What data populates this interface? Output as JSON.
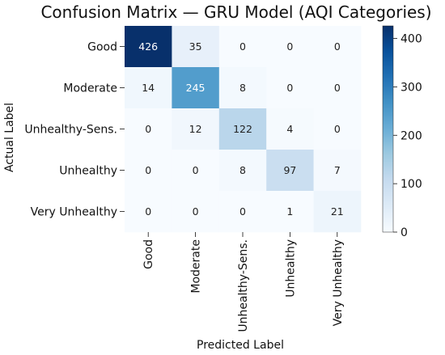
{
  "chart_data": {
    "type": "heatmap",
    "title": "Confusion Matrix — GRU Model (AQI Categories)",
    "xlabel": "Predicted Label",
    "ylabel": "Actual Label",
    "row_labels": [
      "Good",
      "Moderate",
      "Unhealthy-Sens.",
      "Unhealthy",
      "Very Unhealthy"
    ],
    "col_labels": [
      "Good",
      "Moderate",
      "Unhealthy-Sens.",
      "Unhealthy",
      "Very Unhealthy"
    ],
    "values": [
      [
        426,
        35,
        0,
        0,
        0
      ],
      [
        14,
        245,
        8,
        0,
        0
      ],
      [
        0,
        12,
        122,
        4,
        0
      ],
      [
        0,
        0,
        8,
        97,
        7
      ],
      [
        0,
        0,
        0,
        1,
        21
      ]
    ],
    "colormap": "Blues",
    "colorbar": {
      "min": 0,
      "max": 426,
      "ticks": [
        0,
        100,
        200,
        300,
        400
      ]
    }
  }
}
